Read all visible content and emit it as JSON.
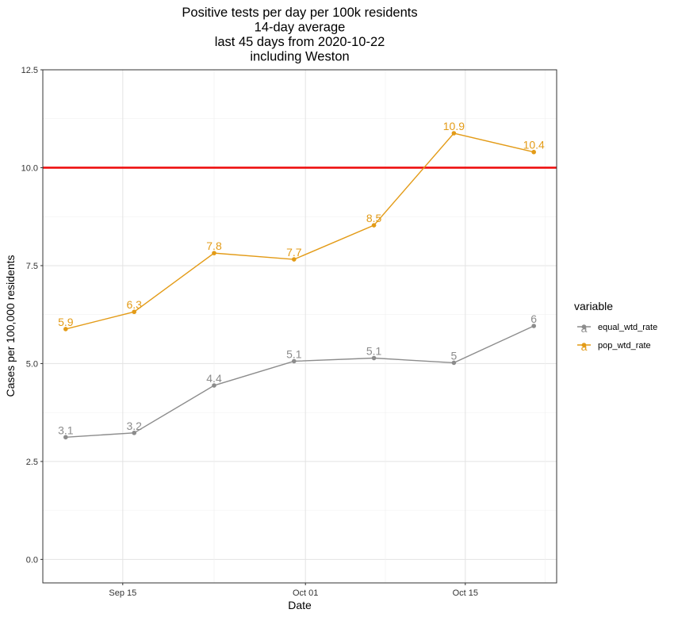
{
  "chart_data": {
    "type": "line",
    "title_lines": [
      "Positive tests per day per 100k residents",
      "14-day average",
      "last 45 days from 2020-10-22",
      "including Weston"
    ],
    "xlabel": "Date",
    "ylabel": "Cases per 100,000 residents",
    "x": [
      "2020-09-10",
      "2020-09-16",
      "2020-09-23",
      "2020-09-30",
      "2020-10-07",
      "2020-10-14",
      "2020-10-21"
    ],
    "x_ticks": [
      {
        "date": "2020-09-15",
        "label": "Sep 15"
      },
      {
        "date": "2020-10-01",
        "label": "Oct 01"
      },
      {
        "date": "2020-10-15",
        "label": "Oct 15"
      }
    ],
    "xlim": [
      "2020-09-08",
      "2020-10-23"
    ],
    "ylim": [
      -0.6,
      12.5
    ],
    "y_ticks": [
      0.0,
      2.5,
      5.0,
      7.5,
      10.0,
      12.5
    ],
    "y_tick_labels": [
      "0.0",
      "2.5",
      "5.0",
      "7.5",
      "10.0",
      "12.5"
    ],
    "reference_line": {
      "y": 10.0,
      "color": "#ee1111"
    },
    "grid": true,
    "legend": {
      "title": "variable",
      "placement": "right",
      "swatch_glyph": "a"
    },
    "series": [
      {
        "name": "equal_wtd_rate",
        "color": "#8c8c8c",
        "values": [
          3.12,
          3.23,
          4.44,
          5.06,
          5.14,
          5.02,
          5.96
        ],
        "labels": [
          "3.1",
          "3.2",
          "4.4",
          "5.1",
          "5.1",
          "5",
          "6"
        ]
      },
      {
        "name": "pop_wtd_rate",
        "color": "#e39b17",
        "values": [
          5.88,
          6.32,
          7.82,
          7.66,
          8.53,
          10.88,
          10.4
        ],
        "labels": [
          "5.9",
          "6.3",
          "7.8",
          "7.7",
          "8.5",
          "10.9",
          "10.4"
        ]
      }
    ]
  }
}
